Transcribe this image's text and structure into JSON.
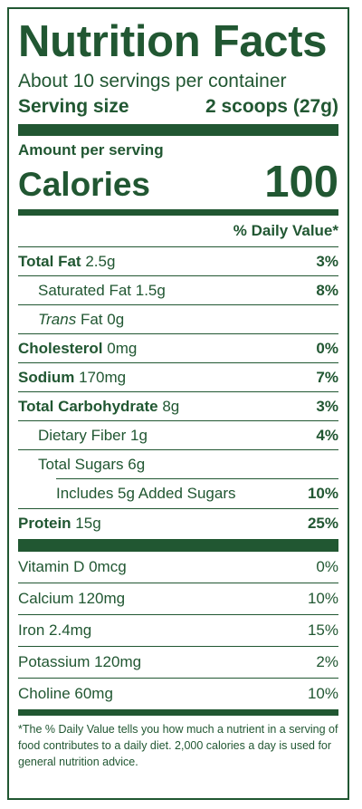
{
  "title": "Nutrition Facts",
  "servings_per_container": "About 10 servings per container",
  "serving_size_label": "Serving size",
  "serving_size_value": "2 scoops (27g)",
  "amount_per_serving": "Amount per serving",
  "calories_label": "Calories",
  "calories_value": "100",
  "daily_value_header": "% Daily Value*",
  "nutrients": {
    "total_fat": {
      "name": "Total Fat",
      "amount": "2.5g",
      "dv": "3%"
    },
    "saturated_fat": {
      "name": "Saturated Fat",
      "amount": "1.5g",
      "dv": "8%"
    },
    "trans_fat": {
      "name_italic": "Trans",
      "name_rest": "Fat",
      "amount": "0g"
    },
    "cholesterol": {
      "name": "Cholesterol",
      "amount": "0mg",
      "dv": "0%"
    },
    "sodium": {
      "name": "Sodium",
      "amount": "170mg",
      "dv": "7%"
    },
    "total_carbohydrate": {
      "name": "Total Carbohydrate",
      "amount": "8g",
      "dv": "3%"
    },
    "dietary_fiber": {
      "name": "Dietary Fiber",
      "amount": "1g",
      "dv": "4%"
    },
    "total_sugars": {
      "name": "Total Sugars",
      "amount": "6g"
    },
    "added_sugars": {
      "text": "Includes 5g Added Sugars",
      "dv": "10%"
    },
    "protein": {
      "name": "Protein",
      "amount": "15g",
      "dv": "25%"
    }
  },
  "micronutrients": {
    "vitamin_d": {
      "text": "Vitamin D 0mcg",
      "dv": "0%"
    },
    "calcium": {
      "text": "Calcium 120mg",
      "dv": "10%"
    },
    "iron": {
      "text": "Iron 2.4mg",
      "dv": "15%"
    },
    "potassium": {
      "text": "Potassium 120mg",
      "dv": "2%"
    },
    "choline": {
      "text": "Choline 60mg",
      "dv": "10%"
    }
  },
  "footnote": "*The % Daily Value tells you how much a nutrient in a serving of food contributes to a daily diet. 2,000 calories a day is used for general nutrition advice.",
  "colors": {
    "ink": "#215732",
    "background": "#ffffff"
  }
}
